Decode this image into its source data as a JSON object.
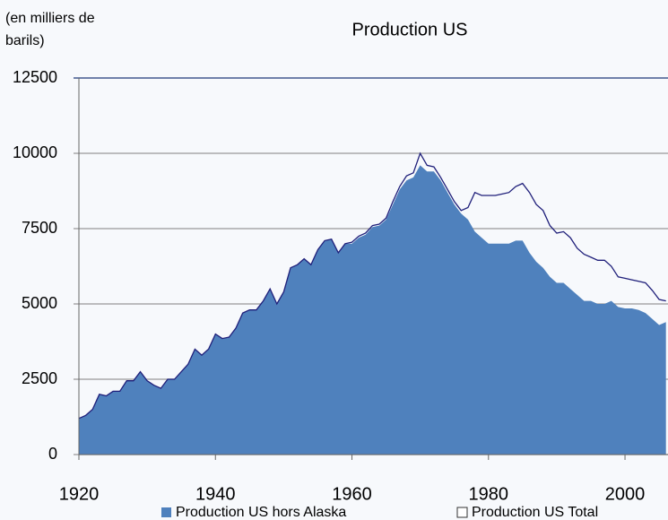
{
  "chart_data": {
    "type": "area",
    "title": "Production US",
    "y_label": "(en milliers de barils)",
    "x": [
      1920,
      1921,
      1922,
      1923,
      1924,
      1925,
      1926,
      1927,
      1928,
      1929,
      1930,
      1931,
      1932,
      1933,
      1934,
      1935,
      1936,
      1937,
      1938,
      1939,
      1940,
      1941,
      1942,
      1943,
      1944,
      1945,
      1946,
      1947,
      1948,
      1949,
      1950,
      1951,
      1952,
      1953,
      1954,
      1955,
      1956,
      1957,
      1958,
      1959,
      1960,
      1961,
      1962,
      1963,
      1964,
      1965,
      1966,
      1967,
      1968,
      1969,
      1970,
      1971,
      1972,
      1973,
      1974,
      1975,
      1976,
      1977,
      1978,
      1979,
      1980,
      1981,
      1982,
      1983,
      1984,
      1985,
      1986,
      1987,
      1988,
      1989,
      1990,
      1991,
      1992,
      1993,
      1994,
      1995,
      1996,
      1997,
      1998,
      1999,
      2000,
      2001,
      2002,
      2003,
      2004,
      2005,
      2006
    ],
    "series": [
      {
        "name": "Production US hors Alaska",
        "color": "#4f81bd",
        "style": "area",
        "values": [
          1200,
          1300,
          1500,
          2000,
          1950,
          2100,
          2100,
          2450,
          2450,
          2750,
          2450,
          2300,
          2200,
          2500,
          2500,
          2750,
          3000,
          3500,
          3300,
          3500,
          4000,
          3850,
          3900,
          4200,
          4700,
          4800,
          4800,
          5100,
          5500,
          5000,
          5400,
          6200,
          6300,
          6500,
          6300,
          6800,
          7100,
          7150,
          6700,
          7000,
          7000,
          7200,
          7300,
          7550,
          7600,
          7800,
          8300,
          8800,
          9100,
          9200,
          9600,
          9400,
          9400,
          9100,
          8700,
          8300,
          8000,
          7800,
          7400,
          7200,
          7000,
          7000,
          7000,
          7000,
          7100,
          7100,
          6700,
          6400,
          6200,
          5900,
          5700,
          5700,
          5500,
          5300,
          5100,
          5100,
          5000,
          5000,
          5100,
          4900,
          4850,
          4850,
          4800,
          4700,
          4500,
          4300,
          4400
        ]
      },
      {
        "name": "Production US Total",
        "color": "#1f1f7a",
        "style": "line",
        "values": [
          1200,
          1300,
          1500,
          2000,
          1950,
          2100,
          2100,
          2450,
          2450,
          2750,
          2450,
          2300,
          2200,
          2500,
          2500,
          2750,
          3000,
          3500,
          3300,
          3500,
          4000,
          3850,
          3900,
          4200,
          4700,
          4800,
          4800,
          5100,
          5500,
          5000,
          5400,
          6200,
          6300,
          6500,
          6300,
          6800,
          7100,
          7150,
          6700,
          7000,
          7050,
          7250,
          7350,
          7600,
          7650,
          7850,
          8400,
          8900,
          9250,
          9350,
          10000,
          9600,
          9550,
          9200,
          8800,
          8400,
          8100,
          8200,
          8700,
          8600,
          8600,
          8600,
          8650,
          8700,
          8900,
          9000,
          8700,
          8300,
          8100,
          7600,
          7350,
          7400,
          7200,
          6850,
          6650,
          6550,
          6450,
          6450,
          6250,
          5900,
          5850,
          5800,
          5750,
          5700,
          5450,
          5150,
          5100
        ]
      }
    ],
    "xlim": [
      1920,
      2006.3
    ],
    "xticks": [
      1920,
      1940,
      1960,
      1980,
      2000
    ],
    "ylim": [
      0,
      12500
    ],
    "yticks": [
      0,
      2500,
      5000,
      7500,
      10000,
      12500
    ],
    "grid": true
  }
}
